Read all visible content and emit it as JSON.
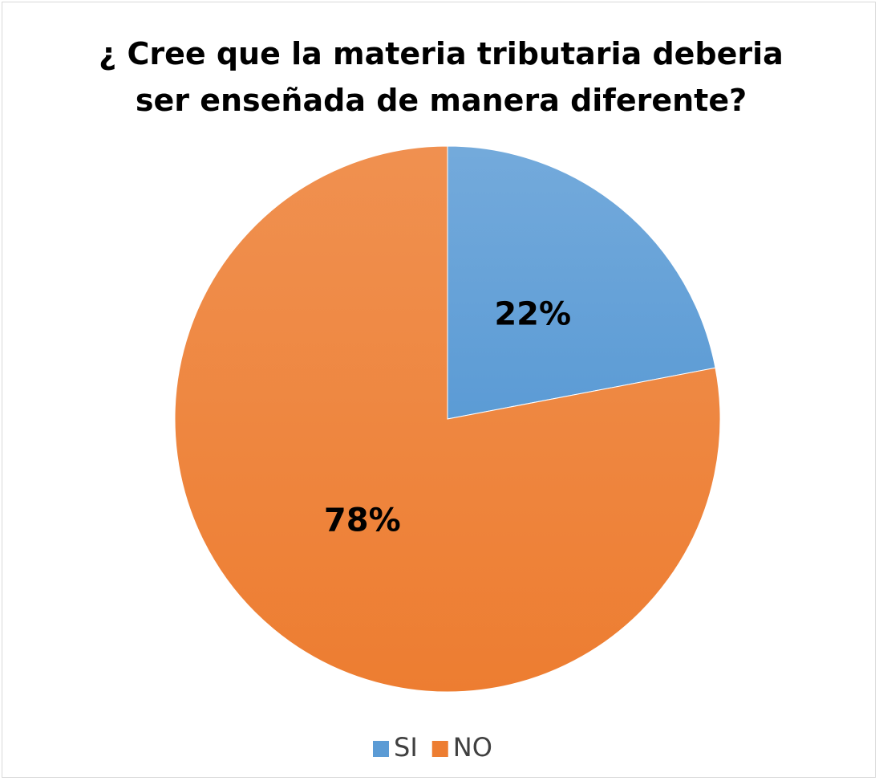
{
  "chart_data": {
    "type": "pie",
    "title": "¿ Cree que la materia tributaria deberia ser enseñada de manera diferente?",
    "categories": [
      "SI",
      "NO"
    ],
    "values": [
      22,
      78
    ],
    "value_labels": [
      "22%",
      "78%"
    ],
    "colors": [
      "#5b9bd5",
      "#ed7d31"
    ],
    "legend": "bottom"
  }
}
